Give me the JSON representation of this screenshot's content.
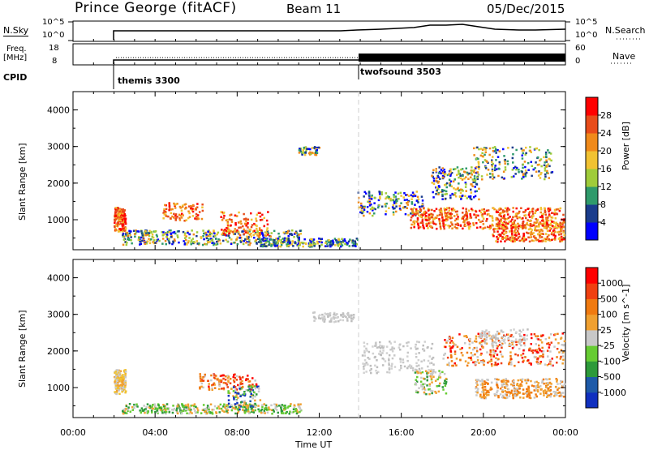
{
  "header": {
    "station": "Prince George (fitACF)",
    "beam": "Beam 11",
    "date": "05/Dec/2015"
  },
  "noise_panel": {
    "left_label": "N.Sky",
    "right_label": "N.Search",
    "left_ticks": [
      "10^5",
      "10^0"
    ],
    "right_ticks": [
      "10^5",
      "10^0"
    ]
  },
  "freq_panel": {
    "left_label_1": "Freq.",
    "left_label_2": "[MHz]",
    "right_label": "Nave",
    "left_ticks": [
      "18",
      "8"
    ],
    "right_ticks": [
      "60",
      "0"
    ]
  },
  "cpid": {
    "label": "CPID",
    "segments": [
      {
        "name": "themis 3300",
        "start_hour": 2.0
      },
      {
        "name": "twofsound 3503",
        "start_hour": 14.0
      }
    ]
  },
  "chart_data": [
    {
      "type": "heatmap",
      "name": "Power",
      "ylabel": "Slant Range [km]",
      "xlabel": "Time UT",
      "x_ticks": [
        "00:00",
        "04:00",
        "08:00",
        "12:00",
        "16:00",
        "20:00",
        "00:00"
      ],
      "y_ticks": [
        1000,
        2000,
        3000,
        4000
      ],
      "xlim_hours": [
        0,
        24
      ],
      "ylim_km": [
        180,
        4500
      ],
      "colorbar": {
        "label": "Power [dB]",
        "tick_labels": [
          "28",
          "24",
          "20",
          "16",
          "12",
          "8",
          "4"
        ],
        "colors": [
          "#0000ff",
          "#1a3c8c",
          "#2f9a6b",
          "#9fcc3a",
          "#f1c232",
          "#f08a1a",
          "#e84c1a",
          "#ff0000"
        ]
      }
    },
    {
      "type": "heatmap",
      "name": "Velocity",
      "ylabel": "Slant Range [km]",
      "xlabel": "Time UT",
      "x_ticks": [
        "00:00",
        "04:00",
        "08:00",
        "12:00",
        "16:00",
        "20:00",
        "00:00"
      ],
      "y_ticks": [
        1000,
        2000,
        3000,
        4000
      ],
      "xlim_hours": [
        0,
        24
      ],
      "ylim_km": [
        180,
        4500
      ],
      "colorbar": {
        "label": "Velocity [m s^-1]",
        "tick_labels": [
          "1000",
          "500",
          "100",
          "25",
          "-25",
          "-100",
          "-500",
          "-1000"
        ],
        "colors": [
          "#1030c0",
          "#1e5aa8",
          "#2d9a3a",
          "#66cc33",
          "#c8c8c8",
          "#f0a030",
          "#f07a10",
          "#f04010",
          "#ff0000"
        ]
      }
    }
  ],
  "x_axis_label": "Time UT",
  "divider_hour": 14
}
